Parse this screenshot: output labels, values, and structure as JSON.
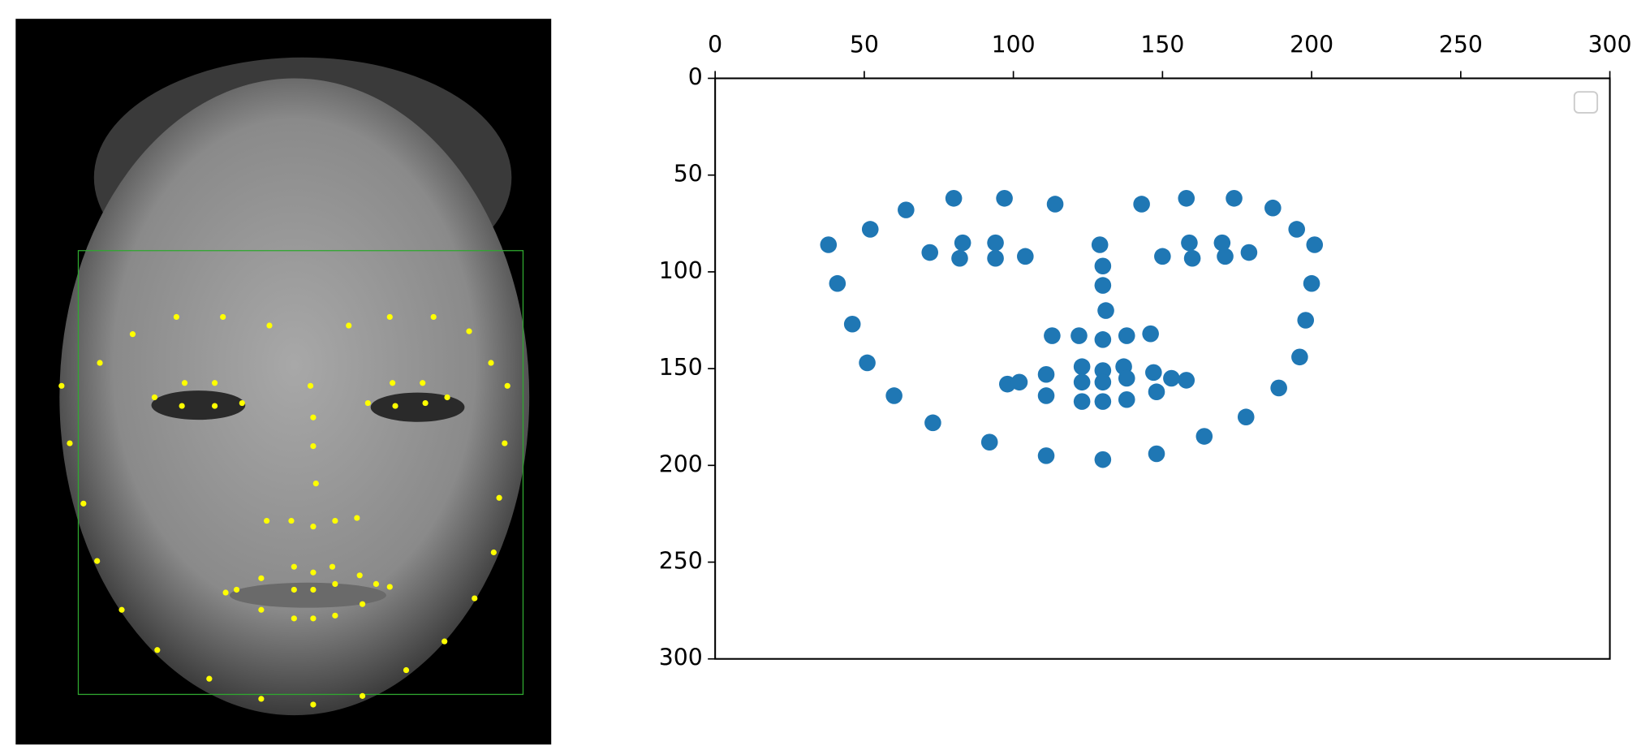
{
  "chart_data": {
    "type": "scatter",
    "x": [
      38,
      41,
      46,
      51,
      60,
      73,
      92,
      111,
      130,
      148,
      164,
      178,
      189,
      196,
      198,
      200,
      201,
      52,
      64,
      80,
      97,
      114,
      143,
      158,
      174,
      187,
      195,
      129,
      130,
      130,
      131,
      113,
      122,
      130,
      138,
      146,
      72,
      83,
      94,
      104,
      94,
      82,
      150,
      159,
      170,
      179,
      171,
      160,
      98,
      111,
      123,
      130,
      137,
      147,
      158,
      148,
      138,
      130,
      123,
      111,
      102,
      123,
      130,
      138,
      153
    ],
    "values": [
      86,
      106,
      127,
      147,
      164,
      178,
      188,
      195,
      197,
      194,
      185,
      175,
      160,
      144,
      125,
      106,
      86,
      78,
      68,
      62,
      62,
      65,
      65,
      62,
      62,
      67,
      78,
      86,
      97,
      107,
      120,
      133,
      133,
      135,
      133,
      132,
      90,
      85,
      85,
      92,
      93,
      93,
      92,
      85,
      85,
      90,
      92,
      93,
      158,
      153,
      149,
      151,
      149,
      152,
      156,
      162,
      166,
      167,
      167,
      164,
      157,
      157,
      157,
      155,
      155
    ],
    "color": "#1f77b4",
    "xlim": [
      0,
      300
    ],
    "xticks": [
      0,
      50,
      100,
      150,
      200,
      250,
      300
    ],
    "ylim": [
      300,
      0
    ],
    "yticks": [
      0,
      50,
      100,
      150,
      200,
      250,
      300
    ],
    "x_axis_position": "top",
    "legend": "upper right"
  }
}
